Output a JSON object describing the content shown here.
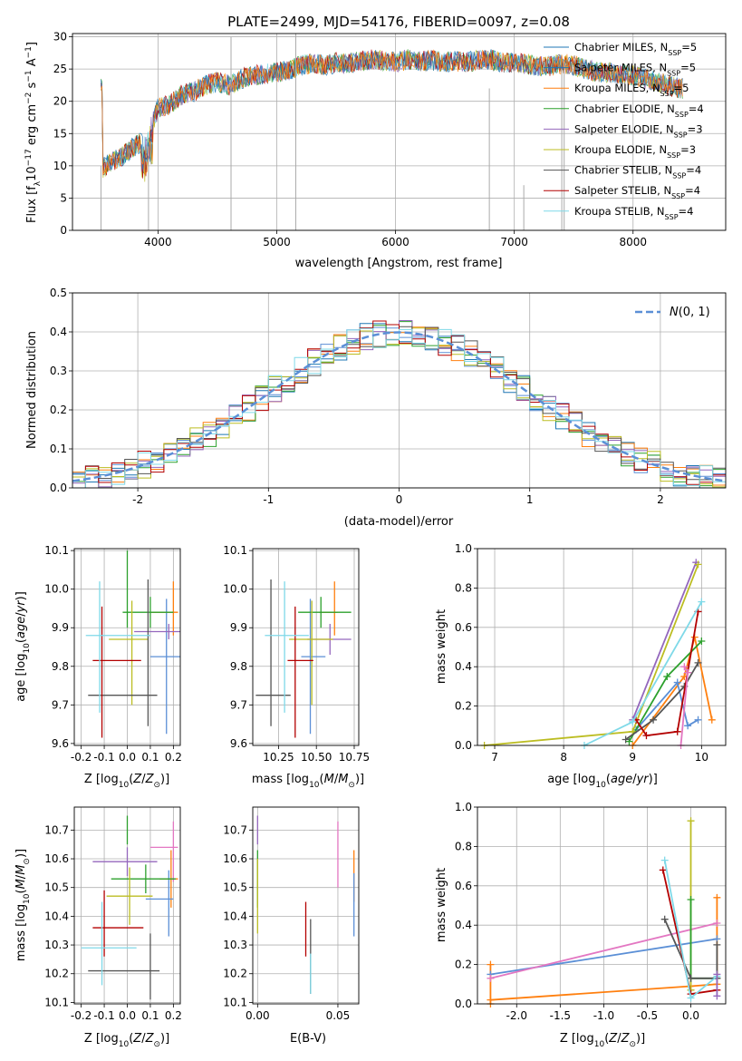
{
  "figure": {
    "title": "PLATE=2499, MJD=54176, FIBERID=0097, z=0.08"
  },
  "legend_models": [
    {
      "name": "Chabrier MILES",
      "nssp": "5",
      "color": "#1f77b4"
    },
    {
      "name": "Salpeter MILES",
      "nssp": "5",
      "color": "#1f77b4"
    },
    {
      "name": "Kroupa MILES",
      "nssp": "5",
      "color": "#ff7f0e"
    },
    {
      "name": "Chabrier ELODIE",
      "nssp": "4",
      "color": "#2ca02c"
    },
    {
      "name": "Salpeter ELODIE",
      "nssp": "3",
      "color": "#9467bd"
    },
    {
      "name": "Kroupa ELODIE",
      "nssp": "3",
      "color": "#bcbd22"
    },
    {
      "name": "Chabrier STELIB",
      "nssp": "4",
      "color": "#555555"
    },
    {
      "name": "Salpeter STELIB",
      "nssp": "4",
      "color": "#b30000"
    },
    {
      "name": "Kroupa STELIB",
      "nssp": "4",
      "color": "#7fd9e8"
    }
  ],
  "chart_data": [
    {
      "id": "spectrum",
      "type": "line",
      "title": "PLATE=2499, MJD=54176, FIBERID=0097, z=0.08",
      "xlabel": "wavelength [Angstrom, rest frame]",
      "ylabel": "Flux [f_λ 10^-17 erg cm^-2 s^-1 A^-1]",
      "xlim": [
        3280,
        8780
      ],
      "ylim": [
        0,
        30.5
      ],
      "xticks": [
        4000,
        5000,
        6000,
        7000,
        8000
      ],
      "yticks": [
        0,
        5,
        10,
        15,
        20,
        25,
        30
      ],
      "grid": true,
      "legend_position": "right",
      "spectrum_envelope": {
        "x": [
          3530,
          3600,
          3700,
          3800,
          3900,
          4000,
          4100,
          4200,
          4300,
          4400,
          4500,
          4600,
          4700,
          4800,
          4900,
          5000,
          5100,
          5200,
          5300,
          5400,
          5500,
          5600,
          5700,
          5800,
          5900,
          6000,
          6100,
          6200,
          6300,
          6400,
          6500,
          6600,
          6700,
          6800,
          6900,
          7000,
          7100,
          7200,
          7300,
          7400,
          7500,
          7600,
          7700,
          7800,
          7900,
          8000,
          8100,
          8200,
          8300,
          8400
        ],
        "y": [
          9.5,
          10.5,
          11.5,
          13,
          14,
          19,
          19.5,
          21,
          21.5,
          22.5,
          23,
          22.5,
          23.5,
          24,
          24.2,
          24.5,
          24.8,
          25.5,
          26,
          25.5,
          26,
          25.8,
          26.2,
          26.5,
          26.3,
          26,
          26.5,
          26.2,
          26.4,
          26,
          26.2,
          26.1,
          26.4,
          26.5,
          26,
          26,
          25.8,
          25.5,
          25.5,
          25.8,
          25.6,
          25,
          24.5,
          24.5,
          24.2,
          24,
          23.5,
          23,
          22.5,
          22
        ]
      }
    },
    {
      "id": "residuals",
      "type": "histogram",
      "xlabel": "(data-model)/error",
      "ylabel": "Normed distribution",
      "xlim": [
        -2.5,
        2.5
      ],
      "ylim": [
        0,
        0.5
      ],
      "xticks": [
        -2,
        -1,
        0,
        1,
        2
      ],
      "yticks": [
        0.0,
        0.1,
        0.2,
        0.3,
        0.4,
        0.5
      ],
      "bin_width": 0.1,
      "reference_curve": {
        "label": "N(0,1)",
        "style": "dashed",
        "color": "#5b8fd6"
      },
      "grid": true,
      "legend_position": "top-right"
    },
    {
      "id": "age_vs_Z",
      "type": "errorbar",
      "xlabel": "Z [log10(Z/Z_sun)]",
      "ylabel": "age [log10(age/yr)]",
      "xlim": [
        -0.23,
        0.23
      ],
      "ylim": [
        9.595,
        10.105
      ],
      "xticks": [
        -0.2,
        -0.1,
        0.0,
        0.1,
        0.2
      ],
      "yticks": [
        9.6,
        9.7,
        9.8,
        9.9,
        10.0,
        10.1
      ],
      "points": [
        {
          "series": "Chabrier MILES",
          "x": 0.0,
          "y": 10.0,
          "xerr": [
            0,
            0
          ],
          "yerr": [
            0.1,
            0.1
          ]
        },
        {
          "series": "Kroupa MILES",
          "x": 0.2,
          "y": 9.94,
          "xerr": [
            0.1,
            0.02
          ],
          "yerr": [
            0.06,
            0.08
          ]
        },
        {
          "series": "Salpeter MILES",
          "x": 0.17,
          "y": 9.825,
          "xerr": [
            0.07,
            0.06
          ],
          "yerr": [
            0.2,
            0.15
          ]
        },
        {
          "series": "Chabrier ELODIE",
          "x": 0.1,
          "y": 9.94,
          "xerr": [
            0.12,
            0.1
          ],
          "yerr": [
            0.04,
            0.04
          ]
        },
        {
          "series": "Salpeter ELODIE",
          "x": 0.18,
          "y": 9.89,
          "xerr": [
            0.15,
            0.05
          ],
          "yerr": [
            0.02,
            0.02
          ]
        },
        {
          "series": "Kroupa ELODIE",
          "x": 0.02,
          "y": 9.87,
          "xerr": [
            0.1,
            0.07
          ],
          "yerr": [
            0.17,
            0.1
          ]
        },
        {
          "series": "Chabrier STELIB",
          "x": 0.09,
          "y": 9.725,
          "xerr": [
            0.26,
            0.04
          ],
          "yerr": [
            0.08,
            0.3
          ]
        },
        {
          "series": "Salpeter STELIB",
          "x": -0.11,
          "y": 9.815,
          "xerr": [
            0.04,
            0.17
          ],
          "yerr": [
            0.2,
            0.14
          ]
        },
        {
          "series": "Kroupa STELIB",
          "x": -0.12,
          "y": 9.88,
          "xerr": [
            0.06,
            0.22
          ],
          "yerr": [
            0.2,
            0.14
          ]
        }
      ],
      "grid": true
    },
    {
      "id": "age_vs_mass",
      "type": "errorbar",
      "xlabel": "mass [log10(M/M_sun)]",
      "ylabel": "",
      "xlim": [
        10.08,
        10.78
      ],
      "ylim": [
        9.595,
        10.105
      ],
      "xticks": [
        10.25,
        10.5,
        10.75
      ],
      "yticks": [
        9.6,
        9.7,
        9.8,
        9.9,
        10.0,
        10.1
      ],
      "points": [
        {
          "series": "Kroupa MILES",
          "x": 10.62,
          "y": 9.94,
          "xerr": [
            0.1,
            0.02
          ],
          "yerr": [
            0.06,
            0.08
          ]
        },
        {
          "series": "Salpeter MILES",
          "x": 10.46,
          "y": 9.825,
          "xerr": [
            0.06,
            0.1
          ],
          "yerr": [
            0.2,
            0.15
          ]
        },
        {
          "series": "Chabrier ELODIE",
          "x": 10.53,
          "y": 9.94,
          "xerr": [
            0.15,
            0.2
          ],
          "yerr": [
            0.04,
            0.04
          ]
        },
        {
          "series": "Salpeter ELODIE",
          "x": 10.59,
          "y": 9.87,
          "xerr": [
            0.15,
            0.14
          ],
          "yerr": [
            0.04,
            0.04
          ]
        },
        {
          "series": "Kroupa ELODIE",
          "x": 10.47,
          "y": 9.87,
          "xerr": [
            0.15,
            0.14
          ],
          "yerr": [
            0.17,
            0.1
          ]
        },
        {
          "series": "Chabrier STELIB",
          "x": 10.2,
          "y": 9.725,
          "xerr": [
            0.1,
            0.13
          ],
          "yerr": [
            0.08,
            0.3
          ]
        },
        {
          "series": "Salpeter STELIB",
          "x": 10.36,
          "y": 9.815,
          "xerr": [
            0.05,
            0.12
          ],
          "yerr": [
            0.2,
            0.14
          ]
        },
        {
          "series": "Kroupa STELIB",
          "x": 10.29,
          "y": 9.88,
          "xerr": [
            0.13,
            0.16
          ],
          "yerr": [
            0.2,
            0.14
          ]
        }
      ],
      "grid": true
    },
    {
      "id": "weight_vs_age",
      "type": "line",
      "xlabel": "age [log10(age/yr)]",
      "ylabel": "mass weight",
      "xlim": [
        6.75,
        10.35
      ],
      "ylim": [
        0,
        1.0
      ],
      "xticks": [
        7,
        8,
        9,
        10
      ],
      "yticks": [
        0.0,
        0.2,
        0.4,
        0.6,
        0.8,
        1.0
      ],
      "series": [
        {
          "name": "Kroupa MILES",
          "x": [
            9.0,
            9.75,
            9.9,
            10.15
          ],
          "y": [
            0.0,
            0.35,
            0.55,
            0.13
          ]
        },
        {
          "name": "Salpeter MILES",
          "x": [
            9.05,
            9.65,
            9.8,
            9.95
          ],
          "y": [
            0.08,
            0.32,
            0.1,
            0.13
          ]
        },
        {
          "name": "Chabrier ELODIE",
          "x": [
            8.95,
            9.5,
            10.0
          ],
          "y": [
            0.02,
            0.35,
            0.53
          ]
        },
        {
          "name": "Salpeter ELODIE",
          "x": [
            9.0,
            9.92
          ],
          "y": [
            0.13,
            0.93
          ]
        },
        {
          "name": "Kroupa ELODIE",
          "x": [
            6.85,
            9.0,
            9.95
          ],
          "y": [
            0.0,
            0.07,
            0.92
          ]
        },
        {
          "name": "Chabrier STELIB",
          "x": [
            8.9,
            9.3,
            9.75,
            9.95
          ],
          "y": [
            0.03,
            0.13,
            0.3,
            0.42
          ]
        },
        {
          "name": "Salpeter STELIB",
          "x": [
            9.05,
            9.2,
            9.65,
            9.95
          ],
          "y": [
            0.13,
            0.05,
            0.07,
            0.68
          ]
        },
        {
          "name": "Kroupa STELIB",
          "x": [
            8.3,
            9.0,
            10.0
          ],
          "y": [
            0.0,
            0.12,
            0.73
          ]
        },
        {
          "name": "extra",
          "x": [
            9.75,
            9.8,
            9.7
          ],
          "y": [
            0.4,
            0.37,
            0.0
          ],
          "color": "#e377c2"
        }
      ],
      "grid": true
    },
    {
      "id": "mass_vs_Z",
      "type": "errorbar",
      "xlabel": "Z [log10(Z/Z_sun)]",
      "ylabel": "mass [log10(M/M_sun)]",
      "xlim": [
        -0.23,
        0.23
      ],
      "ylim": [
        10.095,
        10.78
      ],
      "xticks": [
        -0.2,
        -0.1,
        0.0,
        0.1,
        0.2
      ],
      "yticks": [
        10.1,
        10.2,
        10.3,
        10.4,
        10.5,
        10.6,
        10.7
      ],
      "points": [
        {
          "series": "Chabrier MILES",
          "x": 0.0,
          "y": 10.7,
          "xerr": [
            0,
            0
          ],
          "yerr": [
            0.05,
            0.05
          ]
        },
        {
          "series": "Pink",
          "x": 0.2,
          "y": 10.64,
          "xerr": [
            0.1,
            0.02
          ],
          "yerr": [
            0.12,
            0.09
          ],
          "color": "#e377c2"
        },
        {
          "series": "Kroupa MILES",
          "x": 0.19,
          "y": 10.53,
          "xerr": [
            0.05,
            0.03
          ],
          "yerr": [
            0.1,
            0.1
          ]
        },
        {
          "series": "Salpeter MILES",
          "x": 0.18,
          "y": 10.46,
          "xerr": [
            0.1,
            0.02
          ],
          "yerr": [
            0.13,
            0.1
          ]
        },
        {
          "series": "Chabrier ELODIE",
          "x": 0.08,
          "y": 10.53,
          "xerr": [
            0.15,
            0.13
          ],
          "yerr": [
            0.05,
            0.05
          ]
        },
        {
          "series": "Salpeter ELODIE",
          "x": 0.0,
          "y": 10.59,
          "xerr": [
            0.15,
            0.13
          ],
          "yerr": [
            0.05,
            0.05
          ]
        },
        {
          "series": "Kroupa ELODIE",
          "x": 0.01,
          "y": 10.47,
          "xerr": [
            0.1,
            0.1
          ],
          "yerr": [
            0.1,
            0.1
          ]
        },
        {
          "series": "Chabrier STELIB",
          "x": 0.1,
          "y": 10.21,
          "xerr": [
            0.27,
            0.04
          ],
          "yerr": [
            0.1,
            0.13
          ]
        },
        {
          "series": "Salpeter STELIB",
          "x": -0.1,
          "y": 10.36,
          "xerr": [
            0.05,
            0.17
          ],
          "yerr": [
            0.1,
            0.13
          ]
        },
        {
          "series": "Kroupa STELIB",
          "x": -0.11,
          "y": 10.29,
          "xerr": [
            0.09,
            0.15
          ],
          "yerr": [
            0.13,
            0.16
          ]
        }
      ],
      "grid": true
    },
    {
      "id": "mass_vs_ebv",
      "type": "errorbar",
      "xlabel": "E(B-V)",
      "ylabel": "",
      "xlim": [
        -0.003,
        0.063
      ],
      "ylim": [
        10.095,
        10.78
      ],
      "xticks": [
        0.0,
        0.05
      ],
      "yticks": [
        10.1,
        10.2,
        10.3,
        10.4,
        10.5,
        10.6,
        10.7
      ],
      "points": [
        {
          "series": "Salpeter ELODIE",
          "x": 0.0,
          "y": 10.7,
          "xerr": [
            0,
            0
          ],
          "yerr": [
            0.05,
            0.05
          ]
        },
        {
          "series": "Chabrier ELODIE",
          "x": 0.0,
          "y": 10.53,
          "xerr": [
            0,
            0
          ],
          "yerr": [
            0.1,
            0.1
          ]
        },
        {
          "series": "Kroupa ELODIE",
          "x": 0.0,
          "y": 10.47,
          "xerr": [
            0,
            0
          ],
          "yerr": [
            0.13,
            0.13
          ]
        },
        {
          "series": "Pink",
          "x": 0.05,
          "y": 10.64,
          "xerr": [
            0,
            0
          ],
          "yerr": [
            0.14,
            0.09
          ],
          "color": "#e377c2"
        },
        {
          "series": "Kroupa MILES",
          "x": 0.06,
          "y": 10.53,
          "xerr": [
            0,
            0
          ],
          "yerr": [
            0.08,
            0.1
          ]
        },
        {
          "series": "Salpeter MILES",
          "x": 0.06,
          "y": 10.45,
          "xerr": [
            0,
            0
          ],
          "yerr": [
            0.12,
            0.1
          ]
        },
        {
          "series": "Salpeter STELIB",
          "x": 0.03,
          "y": 10.36,
          "xerr": [
            0,
            0
          ],
          "yerr": [
            0.1,
            0.09
          ]
        },
        {
          "series": "Chabrier STELIB",
          "x": 0.033,
          "y": 10.25,
          "xerr": [
            0,
            0
          ],
          "yerr": [
            0.12,
            0.14
          ]
        },
        {
          "series": "Kroupa STELIB",
          "x": 0.033,
          "y": 10.2,
          "xerr": [
            0,
            0
          ],
          "yerr": [
            0.07,
            0.07
          ]
        }
      ],
      "grid": true
    },
    {
      "id": "weight_vs_Z",
      "type": "line",
      "xlabel": "Z [log10(Z/Z_sun)]",
      "ylabel": "mass weight",
      "xlim": [
        -2.45,
        0.4
      ],
      "ylim": [
        0,
        1.0
      ],
      "xticks": [
        -2.0,
        -1.5,
        -1.0,
        -0.5,
        0.0
      ],
      "yticks": [
        0.0,
        0.2,
        0.4,
        0.6,
        0.8,
        1.0
      ],
      "series": [
        {
          "name": "Kroupa MILES",
          "x": [
            -2.3,
            0.0,
            0.3,
            0.3
          ],
          "y": [
            0.02,
            0.09,
            0.1,
            0.54
          ]
        },
        {
          "name": "Kroupa MILES b",
          "x": [
            -2.3,
            -2.3
          ],
          "y": [
            0.0,
            0.2
          ],
          "color": "#ff7f0e"
        },
        {
          "name": "Salpeter MILES",
          "x": [
            -2.3,
            0.3
          ],
          "y": [
            0.15,
            0.33
          ]
        },
        {
          "name": "Pink",
          "x": [
            -2.3,
            0.3
          ],
          "y": [
            0.13,
            0.41
          ],
          "color": "#e377c2"
        },
        {
          "name": "Kroupa ELODIE",
          "x": [
            0.0,
            0.0
          ],
          "y": [
            0.93,
            0.07
          ]
        },
        {
          "name": "Chabrier ELODIE",
          "x": [
            0.0,
            0.0,
            0.3
          ],
          "y": [
            0.53,
            0.13,
            0.13
          ]
        },
        {
          "name": "Chabrier STELIB",
          "x": [
            -0.3,
            0.0,
            0.3,
            0.3
          ],
          "y": [
            0.43,
            0.13,
            0.13,
            0.3
          ]
        },
        {
          "name": "Salpeter STELIB",
          "x": [
            -0.32,
            0.0,
            0.3
          ],
          "y": [
            0.68,
            0.05,
            0.07
          ]
        },
        {
          "name": "Kroupa STELIB",
          "x": [
            -0.3,
            0.0,
            0.3
          ],
          "y": [
            0.73,
            0.03,
            0.14
          ]
        },
        {
          "name": "Salpeter ELODIE",
          "x": [
            0.3,
            0.3
          ],
          "y": [
            0.04,
            0.15
          ]
        }
      ],
      "grid": true
    }
  ]
}
